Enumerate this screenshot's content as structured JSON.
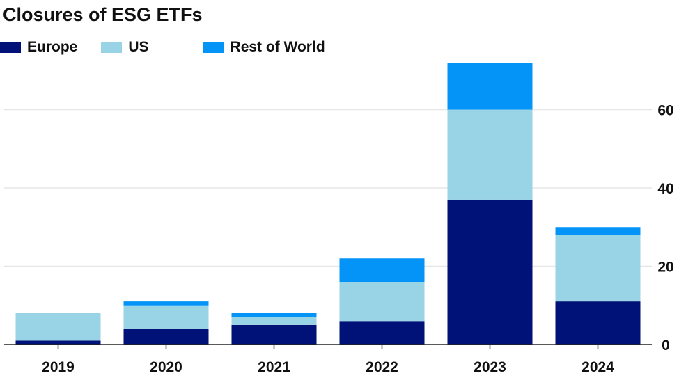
{
  "chart_data": {
    "type": "bar",
    "stacked": true,
    "title": "Closures of ESG ETFs",
    "categories": [
      "2019",
      "2020",
      "2021",
      "2022",
      "2023",
      "2024"
    ],
    "series": [
      {
        "name": "Europe",
        "color": "#001177",
        "values": [
          1,
          4,
          5,
          6,
          37,
          11
        ]
      },
      {
        "name": "US",
        "color": "#99d4e6",
        "values": [
          7,
          6,
          2,
          10,
          23,
          17
        ]
      },
      {
        "name": "Rest of World",
        "color": "#0494f8",
        "values": [
          0,
          1,
          1,
          6,
          12,
          2
        ]
      }
    ],
    "ylim": [
      0,
      72
    ],
    "yticks": [
      "0",
      "20",
      "40",
      "60"
    ],
    "grid": true,
    "y_axis_side": "right",
    "legend_position": "top-left"
  }
}
